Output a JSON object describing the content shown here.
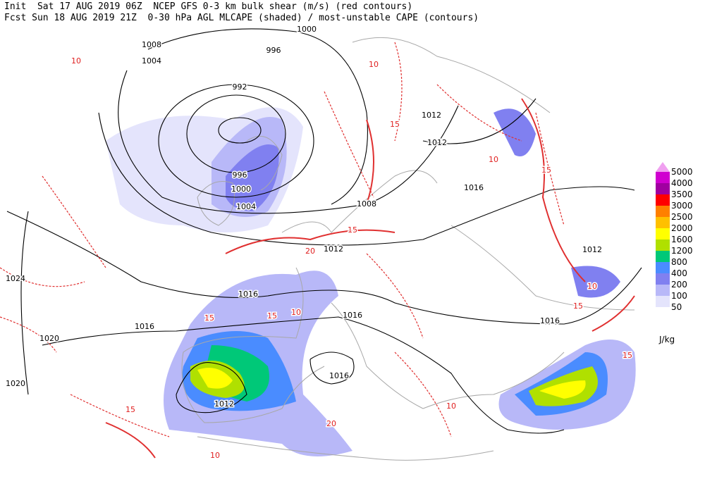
{
  "header": {
    "line1": "Init  Sat 17 AUG 2019 06Z  NCEP GFS 0-3 km bulk shear (m/s) (red contours)",
    "line2": "Fcst Sun 18 AUG 2019 21Z  0-30 hPa AGL MLCAPE (shaded) / most-unstable CAPE (contours)"
  },
  "isobar_labels": [
    "1000",
    "1008",
    "996",
    "1004",
    "992",
    "1012",
    "1012",
    "996",
    "1000",
    "1016",
    "1004",
    "1008",
    "1012",
    "1012",
    "1024",
    "1016",
    "1016",
    "1016",
    "1016",
    "1020",
    "1016",
    "1020",
    "1012"
  ],
  "shear_labels": [
    "10",
    "10",
    "15",
    "20",
    "15",
    "10",
    "15",
    "15",
    "15",
    "10",
    "20",
    "15",
    "15",
    "10",
    "15",
    "10",
    "10"
  ],
  "legend": {
    "levels": [
      {
        "value": 5000,
        "color": "#f0a0f0"
      },
      {
        "value": 4000,
        "color": "#d000d0"
      },
      {
        "value": 3500,
        "color": "#a000a0"
      },
      {
        "value": 3000,
        "color": "#ff0000"
      },
      {
        "value": 2500,
        "color": "#ff8000"
      },
      {
        "value": 2000,
        "color": "#ffc000"
      },
      {
        "value": 1600,
        "color": "#ffff00"
      },
      {
        "value": 1200,
        "color": "#b0e000"
      },
      {
        "value": 800,
        "color": "#00c878"
      },
      {
        "value": 400,
        "color": "#4a8cff"
      },
      {
        "value": 200,
        "color": "#8080f0"
      },
      {
        "value": 100,
        "color": "#b8b8f8"
      },
      {
        "value": 50,
        "color": "#e4e4fc"
      }
    ],
    "unit": "J/kg"
  }
}
